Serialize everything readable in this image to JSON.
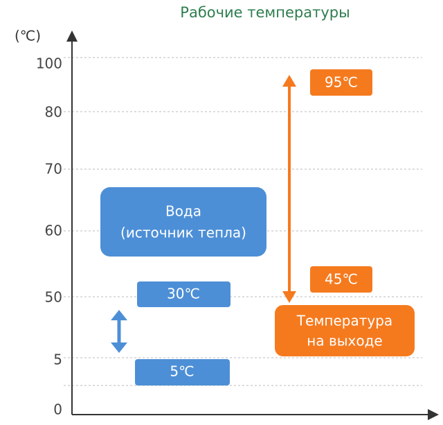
{
  "title": "Рабочие температуры",
  "axis_unit": "(℃)",
  "yticks": [
    "100",
    "80",
    "70",
    "60",
    "50",
    "5",
    "0"
  ],
  "water": {
    "label_lines": [
      "Вода",
      "(источник тепла)"
    ],
    "high": "30℃",
    "low": "5℃"
  },
  "output": {
    "label_lines": [
      "Температура",
      "на выходе"
    ],
    "high": "95℃",
    "low": "45℃"
  }
}
